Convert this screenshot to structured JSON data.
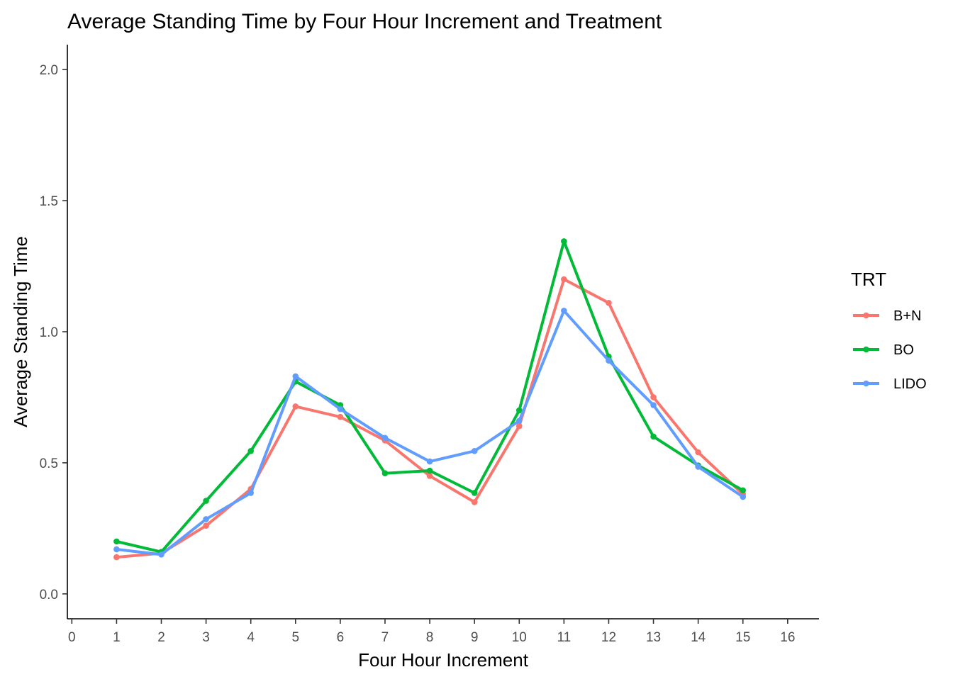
{
  "chart_data": {
    "type": "line",
    "title": "Average Standing Time by Four Hour Increment and Treatment",
    "xlabel": "Four Hour Increment",
    "ylabel": "Average Standing Time",
    "xlim": [
      -0.1,
      16.7
    ],
    "ylim": [
      -0.095,
      2.095
    ],
    "x_ticks": [
      0,
      1,
      2,
      3,
      4,
      5,
      6,
      7,
      8,
      9,
      10,
      11,
      12,
      13,
      14,
      15,
      16
    ],
    "y_ticks": [
      0.0,
      0.5,
      1.0,
      1.5,
      2.0
    ],
    "y_tick_labels": [
      "0.0",
      "0.5",
      "1.0",
      "1.5",
      "2.0"
    ],
    "grid": false,
    "legend": {
      "title": "TRT",
      "position": "right"
    },
    "series": [
      {
        "name": "B+N",
        "color": "#F8766D",
        "x": [
          1,
          2,
          3,
          4,
          5,
          6,
          7,
          8,
          9,
          10,
          11,
          12,
          13,
          14,
          15
        ],
        "values": [
          0.14,
          0.155,
          0.26,
          0.4,
          0.715,
          0.675,
          0.585,
          0.45,
          0.35,
          0.64,
          1.2,
          1.11,
          0.75,
          0.54,
          0.38
        ]
      },
      {
        "name": "BO",
        "color": "#00BA38",
        "x": [
          1,
          2,
          3,
          4,
          5,
          6,
          7,
          8,
          9,
          10,
          11,
          12,
          13,
          14,
          15
        ],
        "values": [
          0.2,
          0.16,
          0.355,
          0.545,
          0.81,
          0.72,
          0.46,
          0.47,
          0.385,
          0.7,
          1.345,
          0.905,
          0.6,
          0.49,
          0.395
        ]
      },
      {
        "name": "LIDO",
        "color": "#619CFF",
        "x": [
          1,
          2,
          3,
          4,
          5,
          6,
          7,
          8,
          9,
          10,
          11,
          12,
          13,
          14,
          15
        ],
        "values": [
          0.17,
          0.15,
          0.285,
          0.385,
          0.83,
          0.705,
          0.595,
          0.505,
          0.545,
          0.66,
          1.08,
          0.89,
          0.72,
          0.485,
          0.37
        ]
      }
    ]
  }
}
